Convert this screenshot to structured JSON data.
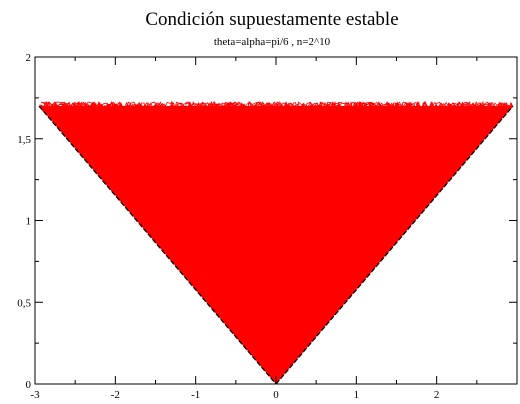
{
  "chart_data": {
    "type": "line",
    "title": "Condición supuestamente estable",
    "subtitle": "theta=alpha=pi/6 , n=2^10",
    "xlabel": "",
    "ylabel": "",
    "xlim": [
      -3,
      3
    ],
    "ylim": [
      0,
      2
    ],
    "x_ticks": [
      {
        "value": -3,
        "label": "-3"
      },
      {
        "value": -2,
        "label": "-2"
      },
      {
        "value": -1,
        "label": "-1"
      },
      {
        "value": 0,
        "label": "0"
      },
      {
        "value": 1,
        "label": "1"
      },
      {
        "value": 2,
        "label": "2"
      }
    ],
    "y_ticks": [
      {
        "value": 0,
        "label": "0"
      },
      {
        "value": 0.5,
        "label": "0,5"
      },
      {
        "value": 1,
        "label": "1"
      },
      {
        "value": 1.5,
        "label": "1,5"
      },
      {
        "value": 2,
        "label": "2"
      }
    ],
    "grid": false,
    "legend": "none",
    "series": [
      {
        "color": "#ff0000",
        "style": "many overlapping noisy red traces filling the region between the two boundary lines up to y ≈ 1.7",
        "envelope_x": [
          -2.95,
          0,
          2.95
        ],
        "envelope_y": [
          1.7,
          0.0,
          1.7
        ],
        "top_y": 1.7
      },
      {
        "color": "#000000",
        "style": "dashed boundary lines",
        "x": [
          -2.95,
          0,
          2.95
        ],
        "y": [
          1.7,
          0.0,
          1.7
        ]
      }
    ]
  }
}
